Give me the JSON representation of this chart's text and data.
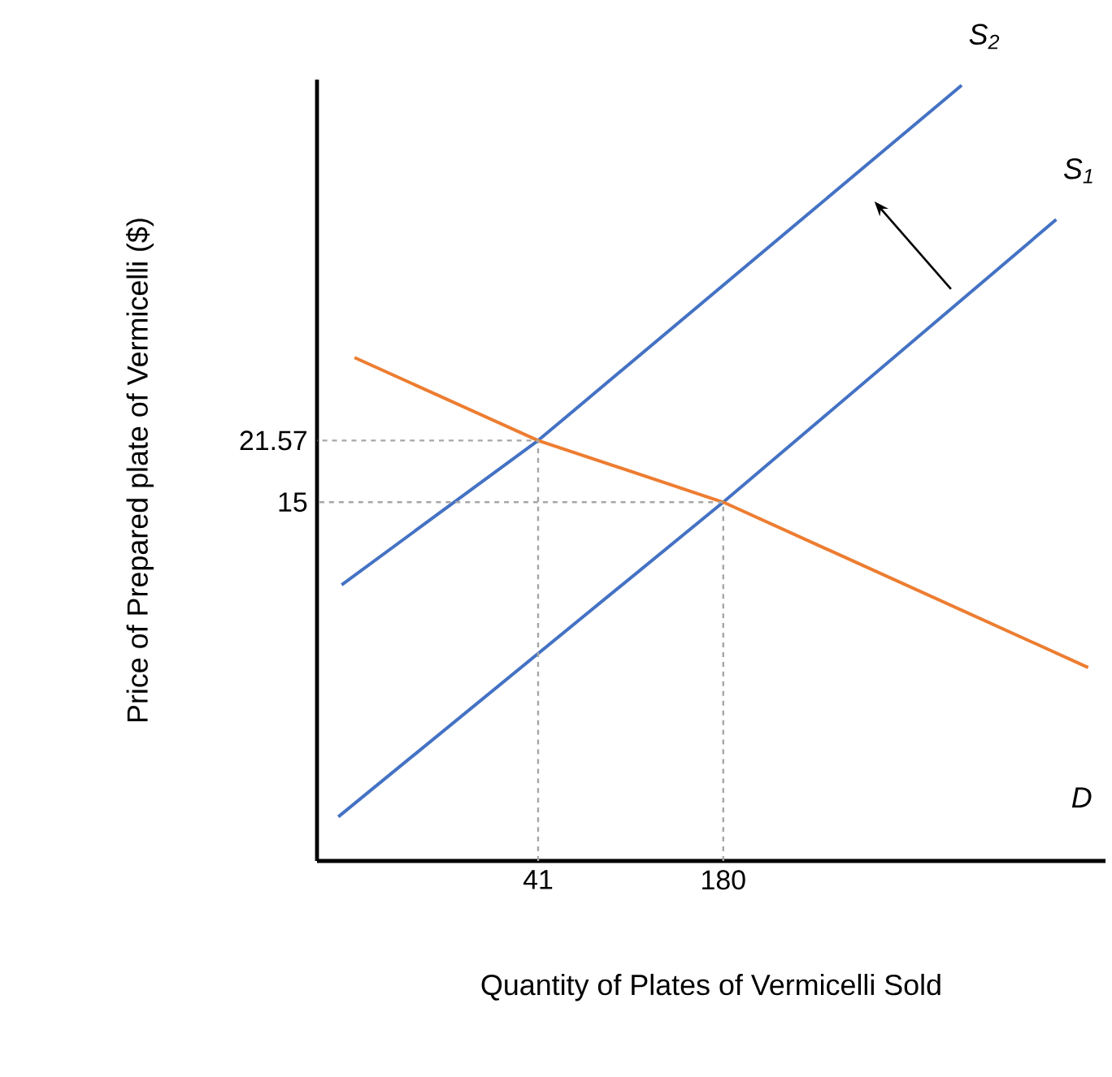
{
  "chart_data": {
    "type": "line",
    "xlabel": "Quantity of Plates of Vermicelli Sold",
    "ylabel": "Price of Prepared plate of Vermicelli ($)",
    "xlim": [
      -125,
      467
    ],
    "ylim": [
      -23.2,
      60
    ],
    "xticks": [
      41,
      180
    ],
    "yticks": [
      15,
      21.57
    ],
    "grid": false,
    "marker": "none",
    "series": [
      {
        "color": "#4472c4",
        "x": [
          -106.5,
          41,
          359
        ],
        "values": [
          6.2,
          21.57,
          59.4
        ]
      },
      {
        "color": "#4472c4",
        "x": [
          -109,
          180,
          430
        ],
        "values": [
          -18.5,
          15,
          45.1
        ]
      },
      {
        "color": "#ed7d31",
        "x": [
          -96.8,
          41,
          180,
          454
        ],
        "values": [
          30.4,
          21.57,
          15,
          -2.6
        ]
      },
      {
        "color": "#a6a6a6",
        "line_style": "dashed",
        "x": [
          41,
          41,
          -125
        ],
        "values": [
          -23.2,
          21.57,
          21.57
        ]
      },
      {
        "color": "#a6a6a6",
        "line_style": "dashed",
        "x": [
          180,
          180,
          -125
        ],
        "values": [
          -23.2,
          15,
          15
        ]
      }
    ],
    "annotations": [
      "S$_{2}$",
      "S$_{1}$",
      "D"
    ]
  }
}
